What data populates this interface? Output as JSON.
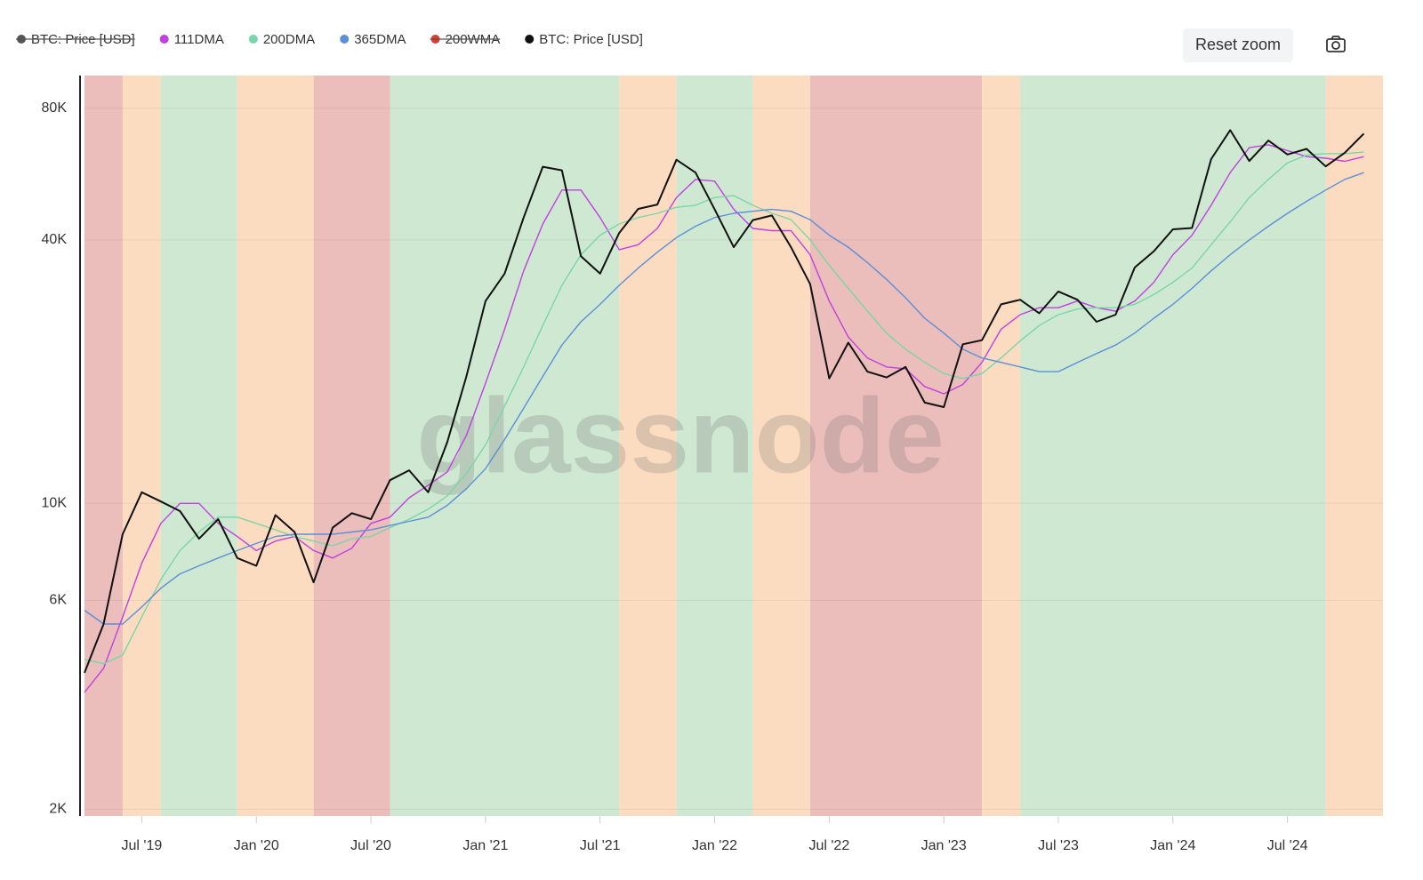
{
  "chart_data": {
    "type": "line",
    "watermark": "glassnode",
    "reset_zoom": "Reset zoom",
    "log_y": true,
    "grid": true,
    "xlim": [
      "2019-04",
      "2024-12"
    ],
    "xticks": [
      {
        "value": "2019-07",
        "label": "Jul '19"
      },
      {
        "value": "2020-01",
        "label": "Jan '20"
      },
      {
        "value": "2020-07",
        "label": "Jul '20"
      },
      {
        "value": "2021-01",
        "label": "Jan '21"
      },
      {
        "value": "2021-07",
        "label": "Jul '21"
      },
      {
        "value": "2022-01",
        "label": "Jan '22"
      },
      {
        "value": "2022-07",
        "label": "Jul '22"
      },
      {
        "value": "2023-01",
        "label": "Jan '23"
      },
      {
        "value": "2023-07",
        "label": "Jul '23"
      },
      {
        "value": "2024-01",
        "label": "Jan '24"
      },
      {
        "value": "2024-07",
        "label": "Jul '24"
      }
    ],
    "ylim": [
      1930,
      95000
    ],
    "yticks": [
      {
        "value": 2000,
        "label": "2K"
      },
      {
        "value": 6000,
        "label": "6K"
      },
      {
        "value": 10000,
        "label": "10K"
      },
      {
        "value": 40000,
        "label": "40K"
      },
      {
        "value": 80000,
        "label": "80K"
      }
    ],
    "regions": [
      {
        "start": "2019-04",
        "end": "2019-06",
        "color": "#ebbdbb"
      },
      {
        "start": "2019-06",
        "end": "2019-08",
        "color": "#fbdcc0"
      },
      {
        "start": "2019-08",
        "end": "2019-12",
        "color": "#cfe8d2"
      },
      {
        "start": "2019-12",
        "end": "2020-04",
        "color": "#fbdcc0"
      },
      {
        "start": "2020-04",
        "end": "2020-08",
        "color": "#ebbdbb"
      },
      {
        "start": "2020-08",
        "end": "2021-08",
        "color": "#cfe8d2"
      },
      {
        "start": "2021-08",
        "end": "2021-11",
        "color": "#fbdcc0"
      },
      {
        "start": "2021-11",
        "end": "2022-03",
        "color": "#cfe8d2"
      },
      {
        "start": "2022-03",
        "end": "2022-06",
        "color": "#fbdcc0"
      },
      {
        "start": "2022-06",
        "end": "2023-03",
        "color": "#ebbdbb"
      },
      {
        "start": "2023-03",
        "end": "2023-05",
        "color": "#fbdcc0"
      },
      {
        "start": "2023-05",
        "end": "2024-09",
        "color": "#cfe8d2"
      },
      {
        "start": "2024-09",
        "end": "2024-12",
        "color": "#fbdcc0"
      }
    ],
    "x": [
      "2019-04",
      "2019-05",
      "2019-06",
      "2019-07",
      "2019-08",
      "2019-09",
      "2019-10",
      "2019-11",
      "2019-12",
      "2020-01",
      "2020-02",
      "2020-03",
      "2020-04",
      "2020-05",
      "2020-06",
      "2020-07",
      "2020-08",
      "2020-09",
      "2020-10",
      "2020-11",
      "2020-12",
      "2021-01",
      "2021-02",
      "2021-03",
      "2021-04",
      "2021-05",
      "2021-06",
      "2021-07",
      "2021-08",
      "2021-09",
      "2021-10",
      "2021-11",
      "2021-12",
      "2022-01",
      "2022-02",
      "2022-03",
      "2022-04",
      "2022-05",
      "2022-06",
      "2022-07",
      "2022-08",
      "2022-09",
      "2022-10",
      "2022-11",
      "2022-12",
      "2023-01",
      "2023-02",
      "2023-03",
      "2023-04",
      "2023-05",
      "2023-06",
      "2023-07",
      "2023-08",
      "2023-09",
      "2023-10",
      "2023-11",
      "2023-12",
      "2024-01",
      "2024-02",
      "2024-03",
      "2024-04",
      "2024-05",
      "2024-06",
      "2024-07",
      "2024-08",
      "2024-09",
      "2024-10",
      "2024-11"
    ],
    "series": [
      {
        "name": "BTC: Price [USD]",
        "color": "#555555",
        "visible": false
      },
      {
        "name": "111DMA",
        "color": "#c040e0",
        "values": [
          3700,
          4200,
          5500,
          7300,
          9000,
          10000,
          10000,
          9000,
          8400,
          7800,
          8200,
          8400,
          7800,
          7500,
          7900,
          9000,
          9300,
          10300,
          11000,
          11800,
          14300,
          18800,
          25000,
          34000,
          43500,
          52000,
          52000,
          45000,
          38000,
          39000,
          42500,
          50000,
          55000,
          54500,
          47000,
          42500,
          42000,
          42000,
          37000,
          29000,
          24000,
          21500,
          20500,
          20300,
          18500,
          17800,
          18700,
          21000,
          25000,
          27000,
          28000,
          28000,
          29000,
          28000,
          27500,
          29000,
          32000,
          37000,
          41000,
          48000,
          57000,
          65000,
          66000,
          64000,
          62000,
          61500,
          60500,
          62000
        ]
      },
      {
        "name": "200DMA",
        "color": "#7ad6a8",
        "values": [
          4400,
          4300,
          4500,
          5500,
          6700,
          7800,
          8600,
          9300,
          9300,
          9000,
          8700,
          8400,
          8200,
          8000,
          8300,
          8400,
          8800,
          9200,
          9700,
          10400,
          11700,
          13600,
          16700,
          20500,
          25500,
          31500,
          37000,
          41000,
          43500,
          45000,
          46000,
          47500,
          48000,
          50000,
          50500,
          48000,
          46000,
          44500,
          40000,
          35000,
          31000,
          27500,
          24500,
          22500,
          21000,
          19800,
          19300,
          19800,
          21500,
          23500,
          25500,
          27000,
          27800,
          28000,
          28000,
          28500,
          30000,
          32000,
          34500,
          39000,
          44000,
          50000,
          55000,
          60000,
          62500,
          63000,
          63000,
          63500
        ]
      },
      {
        "name": "365DMA",
        "color": "#5b8fd8",
        "values": [
          5700,
          5300,
          5300,
          5800,
          6400,
          6900,
          7200,
          7500,
          7800,
          8100,
          8400,
          8500,
          8500,
          8500,
          8600,
          8700,
          8900,
          9100,
          9300,
          9900,
          10800,
          12000,
          14000,
          16500,
          19500,
          23000,
          26000,
          28500,
          31500,
          34500,
          37500,
          40500,
          43000,
          45000,
          46000,
          46500,
          47000,
          46500,
          44500,
          41000,
          38500,
          35500,
          32500,
          29500,
          26500,
          24500,
          22500,
          21500,
          21000,
          20500,
          20000,
          20000,
          21000,
          22000,
          23000,
          24500,
          26500,
          28500,
          31000,
          34000,
          37000,
          40000,
          43000,
          46000,
          49000,
          52000,
          55000,
          57000
        ]
      },
      {
        "name": "200WMA",
        "color": "#e03a2f",
        "visible": false
      },
      {
        "name": "BTC: Price [USD]",
        "color": "#111111",
        "values": [
          4100,
          5300,
          8500,
          10600,
          10100,
          9600,
          8300,
          9200,
          7500,
          7200,
          9400,
          8600,
          6600,
          8800,
          9500,
          9200,
          11300,
          11900,
          10600,
          13800,
          19500,
          29000,
          33500,
          45000,
          58800,
          57700,
          36700,
          33500,
          41500,
          47100,
          48200,
          61000,
          57000,
          47000,
          38500,
          44400,
          45500,
          38500,
          31700,
          19300,
          23300,
          20000,
          19400,
          20500,
          17000,
          16600,
          23100,
          23600,
          28500,
          29200,
          27200,
          30500,
          29200,
          26000,
          27000,
          34600,
          37700,
          42300,
          42600,
          61200,
          71300,
          60600,
          67500,
          62700,
          64600,
          58900,
          63300,
          70000
        ]
      }
    ]
  }
}
